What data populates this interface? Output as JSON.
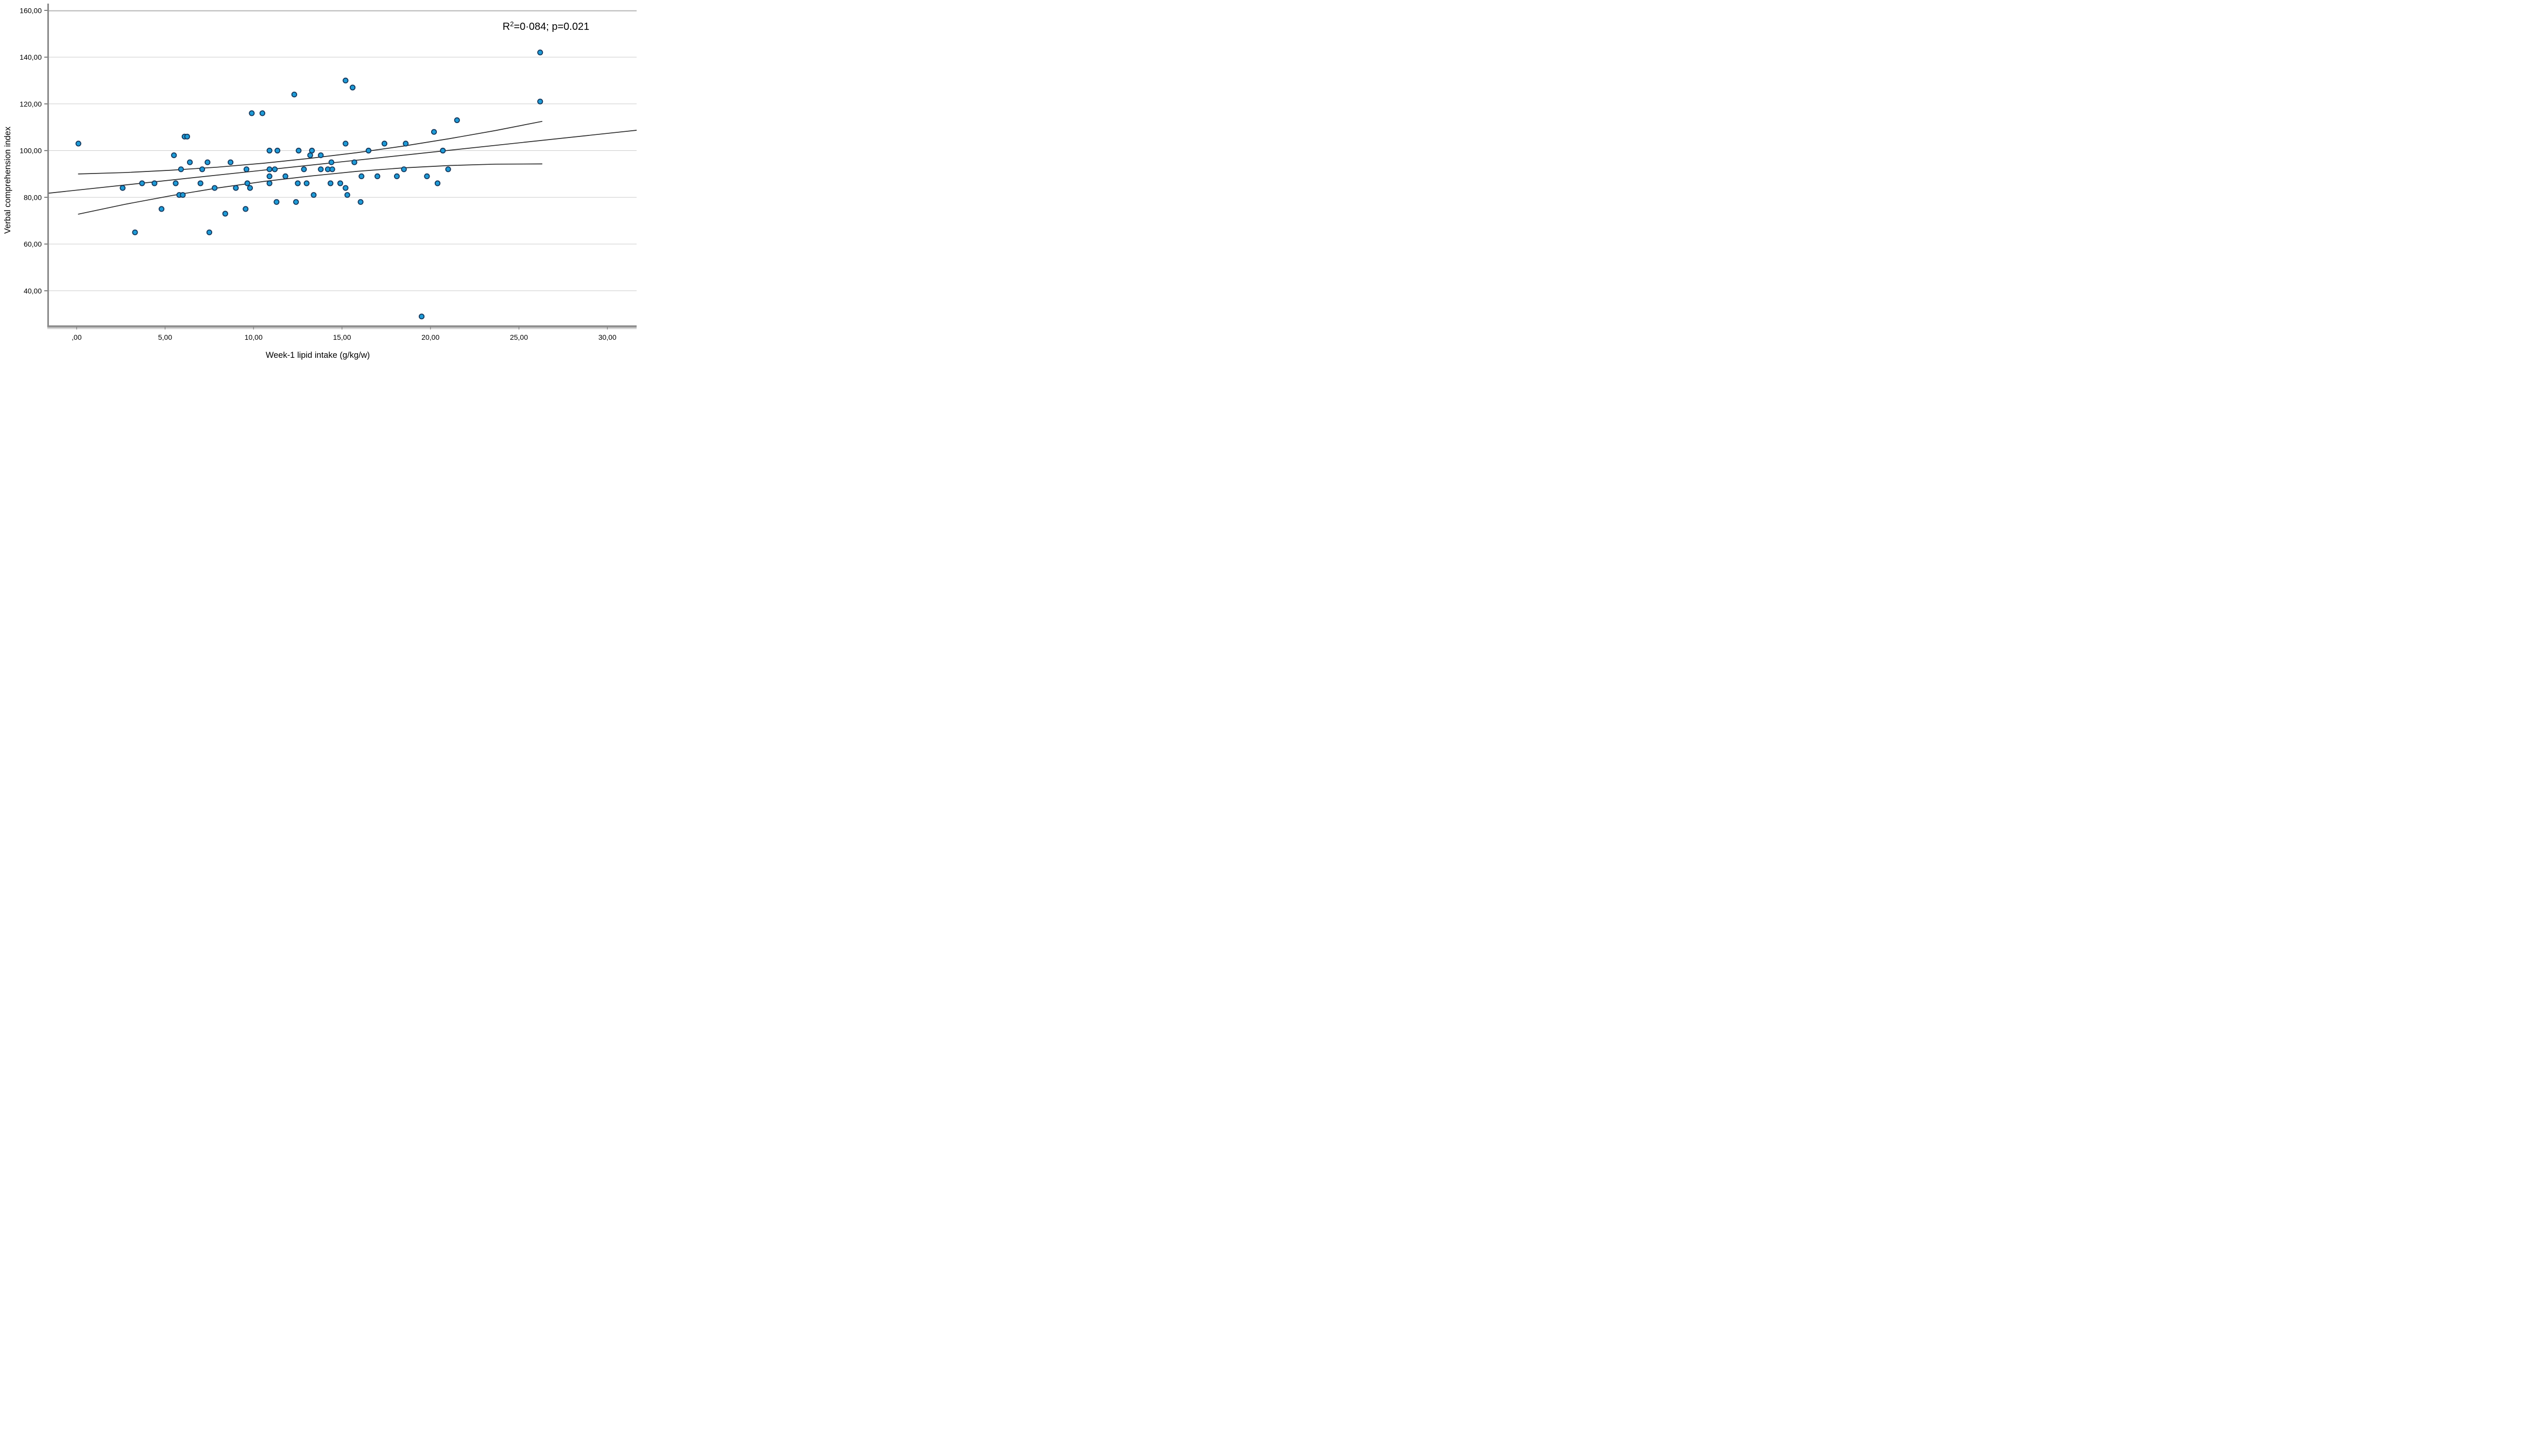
{
  "annotation": {
    "prefix": "R",
    "sup": "2",
    "rest": "=0·084; p=0.021",
    "r_squared": "0.084",
    "p_value": "0.021"
  },
  "chart_data": {
    "type": "scatter",
    "title": "",
    "xlabel": "Week-1 lipid intake (g/kg/w)",
    "ylabel": "Verbal comprehension index",
    "xlim": [
      -1.56,
      31.65
    ],
    "ylim": [
      25,
      163
    ],
    "grid": "horizontal",
    "legend": "none",
    "x_ticks": [
      {
        "v": 0,
        "label": ",00"
      },
      {
        "v": 5,
        "label": "5,00"
      },
      {
        "v": 10,
        "label": "10,00"
      },
      {
        "v": 15,
        "label": "15,00"
      },
      {
        "v": 20,
        "label": "20,00"
      },
      {
        "v": 25,
        "label": "25,00"
      },
      {
        "v": 30,
        "label": "30,00"
      }
    ],
    "y_ticks": [
      {
        "v": 40,
        "label": "40,00"
      },
      {
        "v": 60,
        "label": "60,00"
      },
      {
        "v": 80,
        "label": "80,00"
      },
      {
        "v": 100,
        "label": "100,00"
      },
      {
        "v": 120,
        "label": "120,00"
      },
      {
        "v": 140,
        "label": "140,00"
      },
      {
        "v": 160,
        "label": "160,00"
      }
    ],
    "points": [
      [
        0.1,
        103
      ],
      [
        2.6,
        84
      ],
      [
        3.3,
        65
      ],
      [
        3.7,
        86
      ],
      [
        4.4,
        86
      ],
      [
        4.8,
        75
      ],
      [
        5.5,
        98
      ],
      [
        5.6,
        86
      ],
      [
        5.8,
        81
      ],
      [
        5.9,
        92
      ],
      [
        6.0,
        81
      ],
      [
        6.1,
        106
      ],
      [
        6.25,
        106
      ],
      [
        6.4,
        95
      ],
      [
        7.0,
        86
      ],
      [
        7.1,
        92
      ],
      [
        7.4,
        95
      ],
      [
        7.5,
        65
      ],
      [
        7.8,
        84
      ],
      [
        8.4,
        73
      ],
      [
        8.7,
        95
      ],
      [
        9.0,
        84
      ],
      [
        9.55,
        75
      ],
      [
        9.6,
        92
      ],
      [
        9.65,
        86
      ],
      [
        9.8,
        84
      ],
      [
        9.9,
        116
      ],
      [
        10.5,
        116
      ],
      [
        10.9,
        100
      ],
      [
        10.9,
        92
      ],
      [
        10.9,
        89
      ],
      [
        10.9,
        86
      ],
      [
        11.2,
        92
      ],
      [
        11.3,
        78
      ],
      [
        11.35,
        100
      ],
      [
        11.8,
        89
      ],
      [
        12.3,
        124
      ],
      [
        12.4,
        78
      ],
      [
        12.5,
        86
      ],
      [
        12.55,
        100
      ],
      [
        12.85,
        92
      ],
      [
        13.0,
        86
      ],
      [
        13.2,
        98
      ],
      [
        13.3,
        100
      ],
      [
        13.4,
        81
      ],
      [
        13.8,
        98
      ],
      [
        13.8,
        92
      ],
      [
        14.2,
        92
      ],
      [
        14.35,
        86
      ],
      [
        14.4,
        95
      ],
      [
        14.45,
        92
      ],
      [
        14.9,
        86
      ],
      [
        15.2,
        130
      ],
      [
        15.2,
        103
      ],
      [
        15.2,
        84
      ],
      [
        15.3,
        81
      ],
      [
        15.6,
        127
      ],
      [
        15.7,
        95
      ],
      [
        16.05,
        78
      ],
      [
        16.1,
        89
      ],
      [
        16.5,
        100
      ],
      [
        17.0,
        89
      ],
      [
        17.4,
        103
      ],
      [
        18.1,
        89
      ],
      [
        18.5,
        92
      ],
      [
        18.6,
        103
      ],
      [
        19.5,
        29
      ],
      [
        19.8,
        89
      ],
      [
        20.2,
        108
      ],
      [
        20.4,
        86
      ],
      [
        20.7,
        100
      ],
      [
        21.0,
        92
      ],
      [
        21.5,
        113
      ],
      [
        26.2,
        142
      ],
      [
        26.2,
        121
      ]
    ],
    "fit_line": {
      "name": "linear-regression-fit",
      "points": [
        [
          -1.56,
          81.8
        ],
        [
          31.65,
          108.7
        ]
      ]
    },
    "ci_upper": {
      "name": "upper-confidence-bound",
      "points": [
        [
          0.1,
          90.0
        ],
        [
          2.72,
          90.6
        ],
        [
          5.34,
          91.6
        ],
        [
          7.96,
          92.9
        ],
        [
          10.58,
          94.6
        ],
        [
          13.2,
          96.7
        ],
        [
          15.82,
          99.1
        ],
        [
          18.44,
          101.9
        ],
        [
          21.06,
          105.1
        ],
        [
          23.68,
          108.6
        ],
        [
          26.3,
          112.5
        ]
      ]
    },
    "ci_lower": {
      "name": "lower-confidence-bound",
      "points": [
        [
          0.1,
          72.8
        ],
        [
          2.72,
          77.0
        ],
        [
          5.34,
          80.7
        ],
        [
          7.96,
          84.0
        ],
        [
          10.58,
          86.8
        ],
        [
          13.2,
          89.1
        ],
        [
          15.82,
          91.1
        ],
        [
          18.44,
          92.6
        ],
        [
          21.06,
          93.6
        ],
        [
          23.68,
          94.2
        ],
        [
          26.3,
          94.3
        ]
      ]
    },
    "colors": {
      "point_fill": "#1E9BD7",
      "point_stroke": "#14375C",
      "line": "#2B2B2B",
      "grid": "#CBCBCB",
      "axis": "#8A8A8A",
      "axis_shadow": "#B5B5B5",
      "text": "#000000"
    }
  }
}
